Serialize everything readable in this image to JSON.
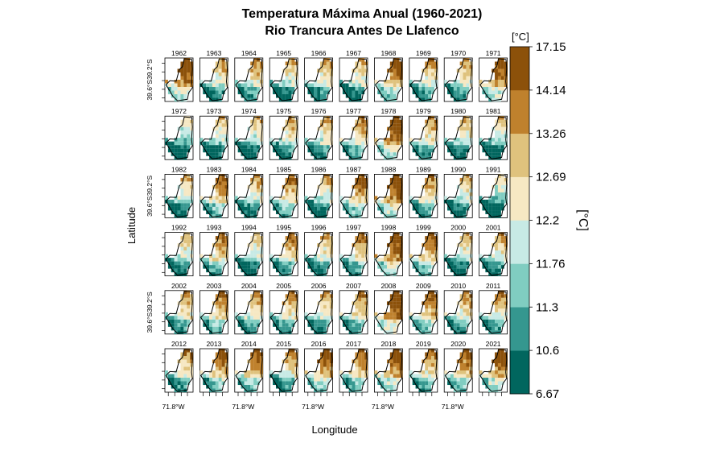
{
  "chart_data": {
    "type": "heatmap",
    "title_line1": "Temperatura Máxima Anual (1960-2021)",
    "title_line2": "Rio Trancura Antes De Llafenco",
    "xlabel": "Longitude",
    "ylabel": "Latitude",
    "x_tick_label": "71.8°W",
    "y_tick_labels": [
      "39.6°S",
      "39.2°S"
    ],
    "colorbar": {
      "unit_label": "[°C]",
      "axis_label": "[°C]",
      "breaks": [
        "6.67",
        "10.6",
        "11.3",
        "11.76",
        "12.2",
        "12.69",
        "13.26",
        "14.14",
        "17.15"
      ],
      "colors": [
        "#01665e",
        "#35978f",
        "#80cdc1",
        "#c7eae5",
        "#f6e8c3",
        "#dfc27d",
        "#bf812d",
        "#8c510a"
      ]
    },
    "years": [
      1962,
      1963,
      1964,
      1965,
      1966,
      1967,
      1968,
      1969,
      1970,
      1971,
      1972,
      1973,
      1974,
      1975,
      1976,
      1977,
      1978,
      1979,
      1980,
      1981,
      1982,
      1983,
      1984,
      1985,
      1986,
      1987,
      1988,
      1989,
      1990,
      1991,
      1992,
      1993,
      1994,
      1995,
      1996,
      1997,
      1998,
      1999,
      2000,
      2001,
      2002,
      2003,
      2004,
      2005,
      2006,
      2007,
      2008,
      2009,
      2010,
      2011,
      2012,
      2013,
      2014,
      2015,
      2016,
      2017,
      2018,
      2019,
      2020,
      2021
    ],
    "panel_warmth": [
      0.9,
      0.55,
      0.6,
      0.5,
      0.55,
      0.5,
      0.8,
      0.6,
      0.55,
      0.85,
      0.35,
      0.45,
      0.45,
      0.55,
      0.55,
      0.65,
      0.9,
      0.6,
      0.5,
      0.4,
      0.5,
      0.7,
      0.55,
      0.7,
      0.5,
      0.75,
      0.9,
      0.6,
      0.5,
      0.35,
      0.5,
      0.7,
      0.45,
      0.65,
      0.55,
      0.65,
      0.9,
      0.75,
      0.5,
      0.55,
      0.6,
      0.7,
      0.6,
      0.6,
      0.55,
      0.65,
      0.95,
      0.75,
      0.6,
      0.6,
      0.6,
      0.75,
      0.75,
      0.6,
      0.8,
      0.7,
      0.85,
      0.65,
      0.75,
      0.85
    ]
  }
}
